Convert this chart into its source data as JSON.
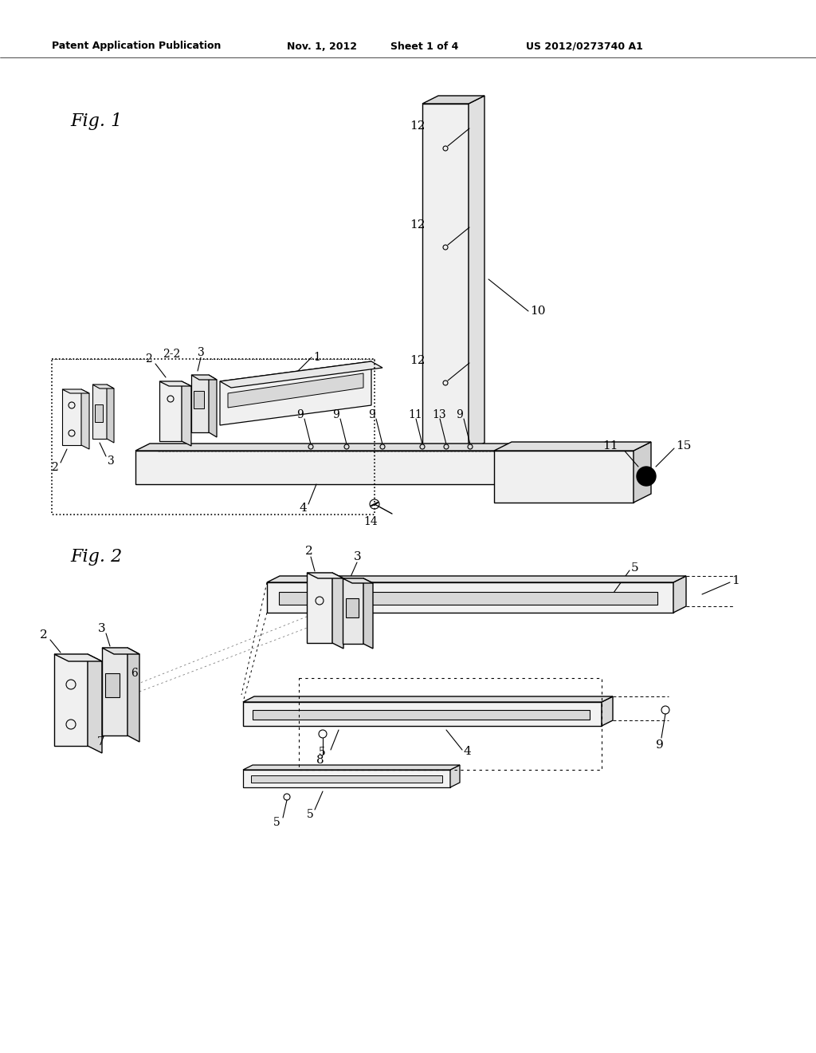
{
  "bg_color": "#ffffff",
  "header_text": "Patent Application Publication",
  "header_date": "Nov. 1, 2012",
  "header_sheet": "Sheet 1 of 4",
  "header_patent": "US 2012/0273740 A1",
  "fig1_label": "Fig. 1",
  "fig2_label": "Fig. 2"
}
